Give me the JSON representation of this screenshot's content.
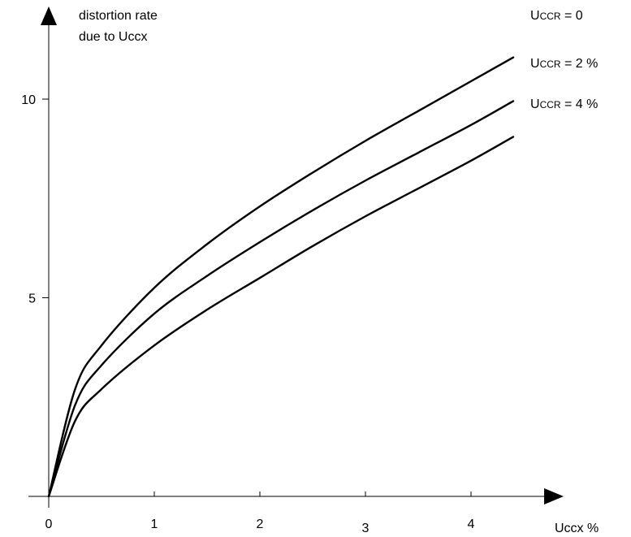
{
  "chart_data": {
    "type": "line",
    "ylabel": [
      "distortion rate",
      "due to Uccx"
    ],
    "xlabel": "Uccx %",
    "xlim": [
      0,
      4.9
    ],
    "ylim": [
      0,
      11.4
    ],
    "x_ticks": [
      0,
      1,
      2,
      3,
      4
    ],
    "x_tick_labels": [
      "0",
      "1",
      "2",
      "3",
      "4"
    ],
    "y_ticks": [
      5,
      10
    ],
    "y_tick_labels": [
      "5",
      "10"
    ],
    "grid": false,
    "legend": "labels at line ends (right)",
    "series": [
      {
        "name": "UCCR = 0",
        "label_main": "U",
        "label_small": "CCR",
        "label_rest": " = 0",
        "x": [
          0,
          0.25,
          0.5,
          1,
          1.5,
          2,
          2.5,
          3,
          3.5,
          4,
          4.4
        ],
        "y": [
          0,
          2.7,
          3.8,
          5.25,
          6.35,
          7.3,
          8.15,
          8.95,
          9.7,
          10.45,
          11.05
        ]
      },
      {
        "name": "UCCR = 2 %",
        "label_main": "U",
        "label_small": "CCR",
        "label_rest": " = 2 %",
        "x": [
          0,
          0.25,
          0.5,
          1,
          1.5,
          2,
          2.5,
          3,
          3.5,
          4,
          4.4
        ],
        "y": [
          0,
          2.3,
          3.3,
          4.6,
          5.55,
          6.4,
          7.2,
          7.95,
          8.65,
          9.35,
          9.95
        ]
      },
      {
        "name": "UCCR = 4 %",
        "label_main": "U",
        "label_small": "CCR",
        "label_rest": " = 4 %",
        "x": [
          0,
          0.25,
          0.5,
          1,
          1.5,
          2,
          2.5,
          3,
          3.5,
          4,
          4.4
        ],
        "y": [
          0,
          1.9,
          2.7,
          3.8,
          4.7,
          5.5,
          6.3,
          7.05,
          7.75,
          8.45,
          9.05
        ]
      }
    ]
  }
}
